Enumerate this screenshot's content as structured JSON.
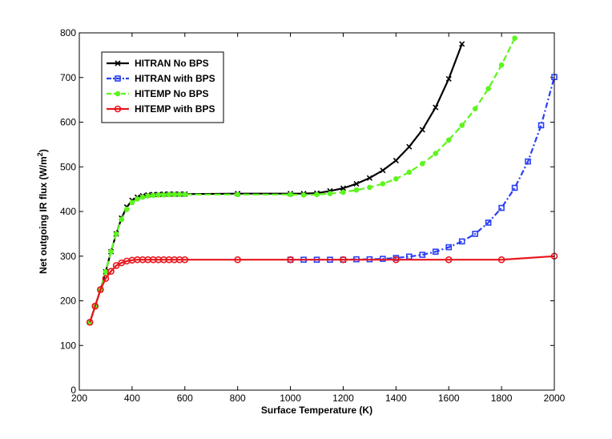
{
  "chart_data": {
    "type": "line",
    "title": "",
    "xlabel": "Surface Temperature (K)",
    "ylabel_prefix": "Net outgoing IR flux (W/m",
    "ylabel_sup": "2",
    "ylabel_suffix": ")",
    "xlim": [
      200,
      2000
    ],
    "ylim": [
      0,
      800
    ],
    "xticks": [
      200,
      400,
      600,
      800,
      1000,
      1200,
      1400,
      1600,
      1800,
      2000
    ],
    "yticks": [
      0,
      100,
      200,
      300,
      400,
      500,
      600,
      700,
      800
    ],
    "grid": false,
    "legend_position": "top-left",
    "series": [
      {
        "name": "HITRAN No BPS",
        "color": "#000000",
        "line_style": "solid",
        "marker": "x",
        "x": [
          240,
          260,
          280,
          300,
          320,
          340,
          360,
          380,
          400,
          420,
          440,
          460,
          480,
          500,
          520,
          540,
          560,
          580,
          600,
          800,
          1000,
          1050,
          1100,
          1150,
          1200,
          1250,
          1300,
          1350,
          1400,
          1450,
          1500,
          1550,
          1600,
          1650
        ],
        "y": [
          152,
          188,
          225,
          265,
          310,
          350,
          385,
          410,
          425,
          432,
          435,
          437,
          438,
          438,
          439,
          439,
          439,
          439,
          439,
          440,
          440,
          440,
          441,
          446,
          452,
          462,
          475,
          492,
          514,
          545,
          583,
          633,
          697,
          775
        ]
      },
      {
        "name": "HITRAN with BPS",
        "color": "#2a3ff5",
        "line_style": "dashdot",
        "marker": "square",
        "x": [
          1000,
          1050,
          1100,
          1150,
          1200,
          1250,
          1300,
          1350,
          1400,
          1450,
          1500,
          1550,
          1600,
          1650,
          1700,
          1750,
          1800,
          1850,
          1900,
          1950,
          2000
        ],
        "y": [
          292,
          292,
          292,
          292,
          292,
          293,
          293,
          294,
          296,
          299,
          303,
          310,
          320,
          333,
          350,
          375,
          408,
          453,
          512,
          593,
          701
        ]
      },
      {
        "name": "HITEMP No BPS",
        "color": "#5cf51c",
        "line_style": "dashed",
        "marker": "dot",
        "x": [
          240,
          260,
          280,
          300,
          320,
          340,
          360,
          380,
          400,
          420,
          440,
          460,
          480,
          500,
          520,
          540,
          560,
          580,
          600,
          800,
          1000,
          1050,
          1100,
          1150,
          1200,
          1250,
          1300,
          1350,
          1400,
          1450,
          1500,
          1550,
          1600,
          1650,
          1700,
          1750,
          1800,
          1850
        ],
        "y": [
          152,
          188,
          225,
          265,
          310,
          350,
          382,
          405,
          420,
          428,
          432,
          435,
          436,
          437,
          437,
          438,
          438,
          438,
          438,
          438,
          438,
          437,
          438,
          440,
          443,
          448,
          454,
          462,
          473,
          488,
          507,
          530,
          560,
          593,
          630,
          675,
          728,
          788
        ]
      },
      {
        "name": "HITEMP with BPS",
        "color": "#e8161c",
        "line_style": "solid",
        "marker": "circle",
        "x": [
          240,
          260,
          280,
          300,
          320,
          340,
          360,
          380,
          400,
          420,
          440,
          460,
          480,
          500,
          520,
          540,
          560,
          580,
          600,
          800,
          1000,
          1200,
          1400,
          1600,
          1800,
          2000
        ],
        "y": [
          152,
          188,
          225,
          250,
          266,
          279,
          285,
          289,
          291,
          292,
          292,
          292,
          292,
          292,
          292,
          292,
          292,
          292,
          292,
          292,
          292,
          292,
          292,
          292,
          292,
          300
        ]
      }
    ]
  }
}
